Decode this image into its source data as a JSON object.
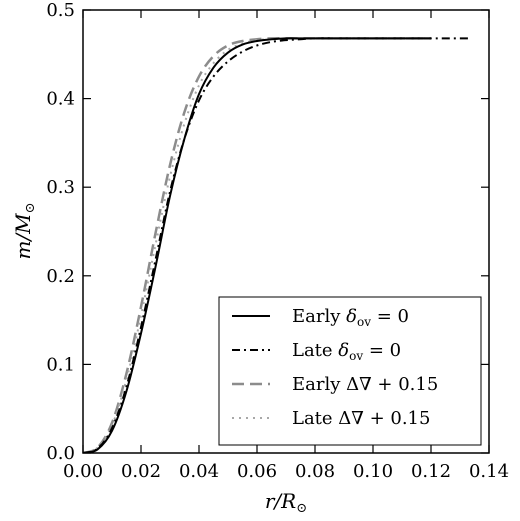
{
  "chart_data": {
    "type": "line",
    "xlabel": "r/R⊙",
    "ylabel": "m/M⊙",
    "xlim": [
      0.0,
      0.14
    ],
    "ylim": [
      0.0,
      0.5
    ],
    "x_ticks": [
      "0.00",
      "0.02",
      "0.04",
      "0.06",
      "0.08",
      "0.10",
      "0.12",
      "0.14"
    ],
    "y_ticks": [
      "0.0",
      "0.1",
      "0.2",
      "0.3",
      "0.4",
      "0.5"
    ],
    "legend_position": "lower-right",
    "grid": false,
    "series": [
      {
        "name": "Early δov = 0",
        "color": "#000000",
        "dash": "solid",
        "x": [
          0.0,
          0.005,
          0.01,
          0.015,
          0.02,
          0.025,
          0.03,
          0.035,
          0.04,
          0.045,
          0.05,
          0.055,
          0.06,
          0.065,
          0.07,
          0.075,
          0.08,
          0.09,
          0.1,
          0.11,
          0.12
        ],
        "y": [
          0.0,
          0.004,
          0.025,
          0.07,
          0.135,
          0.21,
          0.29,
          0.355,
          0.405,
          0.435,
          0.452,
          0.461,
          0.465,
          0.467,
          0.468,
          0.468,
          0.468,
          0.468,
          0.468,
          0.468,
          0.468
        ]
      },
      {
        "name": "Late δov = 0",
        "color": "#000000",
        "dash": "dashdot",
        "x": [
          0.0,
          0.005,
          0.01,
          0.015,
          0.02,
          0.025,
          0.03,
          0.035,
          0.04,
          0.045,
          0.05,
          0.055,
          0.06,
          0.065,
          0.07,
          0.075,
          0.08,
          0.09,
          0.1,
          0.11,
          0.12,
          0.133
        ],
        "y": [
          0.0,
          0.005,
          0.028,
          0.075,
          0.142,
          0.218,
          0.295,
          0.355,
          0.398,
          0.425,
          0.442,
          0.453,
          0.46,
          0.464,
          0.466,
          0.467,
          0.468,
          0.468,
          0.468,
          0.468,
          0.468,
          0.468
        ]
      },
      {
        "name": "Early Δ∇ + 0.15",
        "color": "#8c8c8c",
        "dash": "dashed",
        "x": [
          0.0,
          0.005,
          0.01,
          0.015,
          0.02,
          0.025,
          0.03,
          0.035,
          0.04,
          0.045,
          0.05,
          0.055,
          0.06,
          0.065,
          0.07,
          0.075,
          0.08,
          0.09,
          0.1,
          0.11,
          0.12
        ],
        "y": [
          0.0,
          0.006,
          0.034,
          0.09,
          0.165,
          0.248,
          0.325,
          0.385,
          0.425,
          0.448,
          0.46,
          0.465,
          0.467,
          0.468,
          0.468,
          0.468,
          0.468,
          0.468,
          0.468,
          0.468,
          0.468
        ]
      },
      {
        "name": "Late Δ∇ + 0.15",
        "color": "#a8a8a8",
        "dash": "dotted",
        "x": [
          0.0,
          0.005,
          0.01,
          0.015,
          0.02,
          0.025,
          0.03,
          0.035,
          0.04,
          0.045,
          0.05,
          0.055,
          0.06,
          0.065,
          0.07,
          0.075,
          0.08,
          0.09,
          0.1,
          0.11,
          0.12
        ],
        "y": [
          0.0,
          0.006,
          0.031,
          0.083,
          0.155,
          0.235,
          0.312,
          0.372,
          0.415,
          0.44,
          0.455,
          0.462,
          0.466,
          0.467,
          0.468,
          0.468,
          0.468,
          0.468,
          0.468,
          0.468,
          0.468
        ]
      }
    ]
  }
}
